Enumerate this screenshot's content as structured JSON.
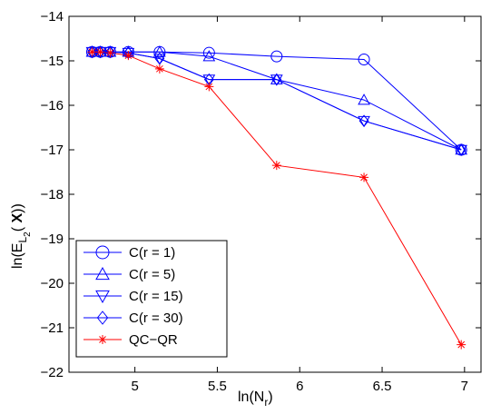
{
  "chart_data": {
    "type": "line",
    "xlim": [
      4.6,
      7.1
    ],
    "ylim": [
      -22,
      -14
    ],
    "x_ticks": [
      5,
      5.5,
      6,
      6.5,
      7
    ],
    "x_tick_labels": [
      "5",
      "5.5",
      "6",
      "6.5",
      "7"
    ],
    "y_ticks": [
      -22,
      -21,
      -20,
      -19,
      -18,
      -17,
      -16,
      -15,
      -14
    ],
    "y_tick_labels": [
      "−22",
      "−21",
      "−20",
      "−19",
      "−18",
      "−17",
      "−16",
      "−15",
      "−14"
    ],
    "xlabel": {
      "base": "ln(N",
      "sub": "r",
      "end": ")"
    },
    "ylabel": {
      "base": "ln(E",
      "sub1": "L",
      "sub2": "2",
      "mid": "( ",
      "bold": "X",
      "end": "))"
    },
    "grid": false,
    "legend_position": "bottom-left",
    "series": [
      {
        "name": "C(r = 1)",
        "color": "#0000ff",
        "marker": "circle",
        "x": [
          4.74,
          4.79,
          4.85,
          4.96,
          5.15,
          5.45,
          5.86,
          6.39,
          6.98
        ],
        "y": [
          -14.8,
          -14.8,
          -14.8,
          -14.8,
          -14.8,
          -14.82,
          -14.9,
          -14.97,
          -17.0
        ]
      },
      {
        "name": "C(r = 5)",
        "color": "#0000ff",
        "marker": "triangle-up",
        "x": [
          4.74,
          4.79,
          4.85,
          4.96,
          5.15,
          5.45,
          5.86,
          6.39,
          6.98
        ],
        "y": [
          -14.8,
          -14.8,
          -14.8,
          -14.8,
          -14.8,
          -14.9,
          -15.42,
          -15.88,
          -17.0
        ]
      },
      {
        "name": "C(r = 15)",
        "color": "#0000ff",
        "marker": "triangle-down",
        "x": [
          4.74,
          4.79,
          4.85,
          4.96,
          5.15,
          5.45,
          5.86,
          6.39,
          6.98
        ],
        "y": [
          -14.8,
          -14.8,
          -14.8,
          -14.82,
          -14.95,
          -15.42,
          -15.42,
          -16.35,
          -17.0
        ]
      },
      {
        "name": "C(r = 30)",
        "color": "#0000ff",
        "marker": "diamond",
        "x": [
          4.74,
          4.79,
          4.85,
          4.96,
          5.15,
          5.45,
          5.86,
          6.39,
          6.98
        ],
        "y": [
          -14.8,
          -14.8,
          -14.8,
          -14.82,
          -14.95,
          -15.42,
          -15.42,
          -16.35,
          -17.0
        ]
      },
      {
        "name": "QC−QR",
        "color": "#ff0000",
        "marker": "asterisk",
        "x": [
          4.74,
          4.79,
          4.85,
          4.96,
          5.15,
          5.45,
          5.86,
          6.39,
          6.98
        ],
        "y": [
          -14.8,
          -14.8,
          -14.82,
          -14.88,
          -15.18,
          -15.58,
          -17.35,
          -17.62,
          -21.38
        ]
      }
    ]
  }
}
